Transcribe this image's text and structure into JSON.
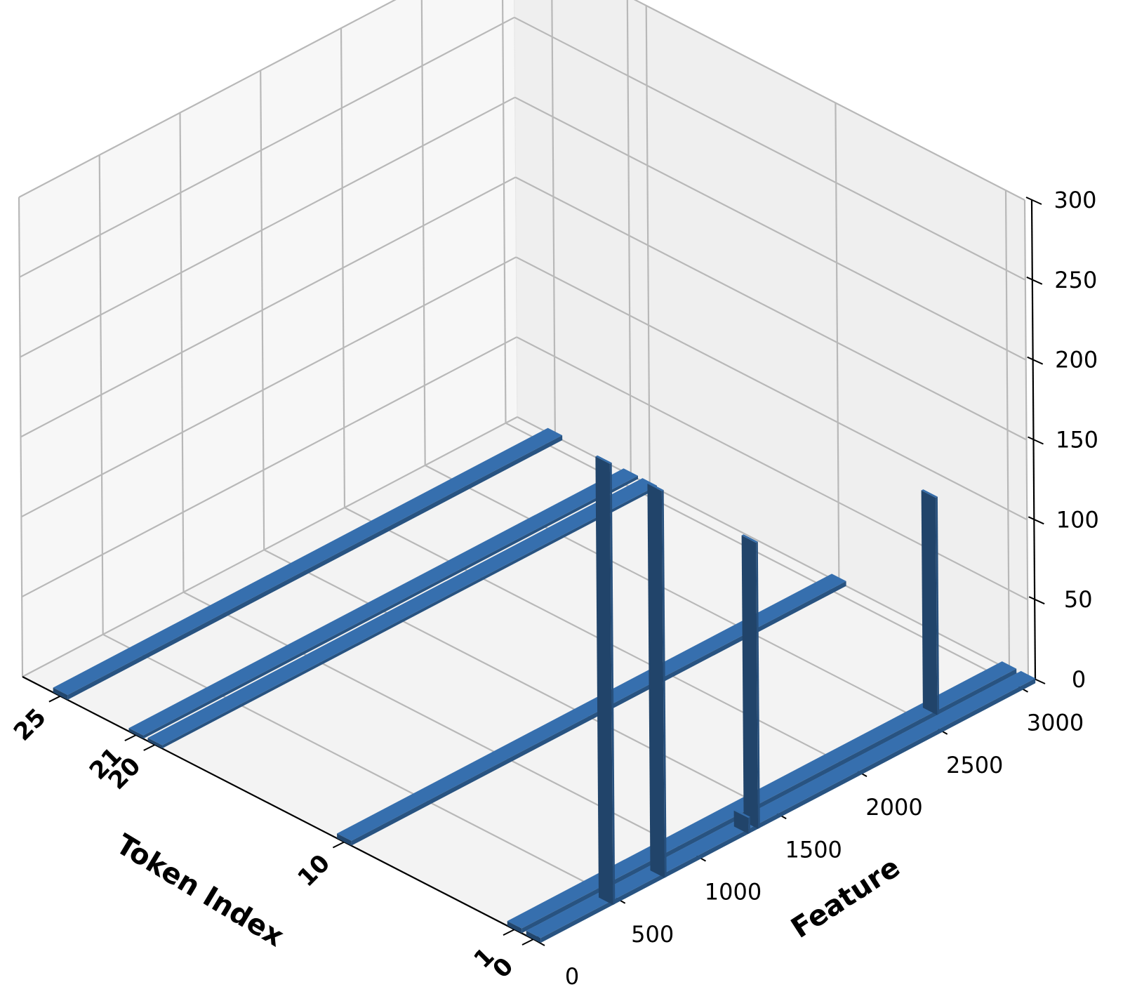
{
  "chart_data": {
    "type": "bar3d",
    "title": "",
    "xlabel": "Token Index",
    "ylabel": "Feature",
    "zlabel": "",
    "xlim": [
      0,
      27
    ],
    "ylim": [
      0,
      3072
    ],
    "zlim": [
      0,
      300
    ],
    "x_ticks": [
      "0",
      "1",
      "10",
      "20",
      "21",
      "25"
    ],
    "y_ticks": [
      "0",
      "500",
      "1000",
      "1500",
      "2000",
      "2500",
      "3000"
    ],
    "z_ticks": [
      "0",
      "50",
      "100",
      "150",
      "200",
      "250",
      "300"
    ],
    "grid": true,
    "bar_color": "#2a5788",
    "series": [
      {
        "x": 0,
        "baseline": 3,
        "peaks": [
          {
            "feature": 450,
            "value": 276
          },
          {
            "feature": 770,
            "value": 242
          },
          {
            "feature": 1350,
            "value": 179
          },
          {
            "feature": 1290,
            "value": 10
          }
        ]
      },
      {
        "x": 1,
        "baseline": 3,
        "peaks": [
          {
            "feature": 2580,
            "value": 136
          }
        ]
      },
      {
        "x": 10,
        "baseline": 3,
        "peaks": []
      },
      {
        "x": 20,
        "baseline": 2,
        "peaks": []
      },
      {
        "x": 21,
        "baseline": 2,
        "peaks": []
      },
      {
        "x": 25,
        "baseline": 3,
        "peaks": []
      }
    ]
  }
}
